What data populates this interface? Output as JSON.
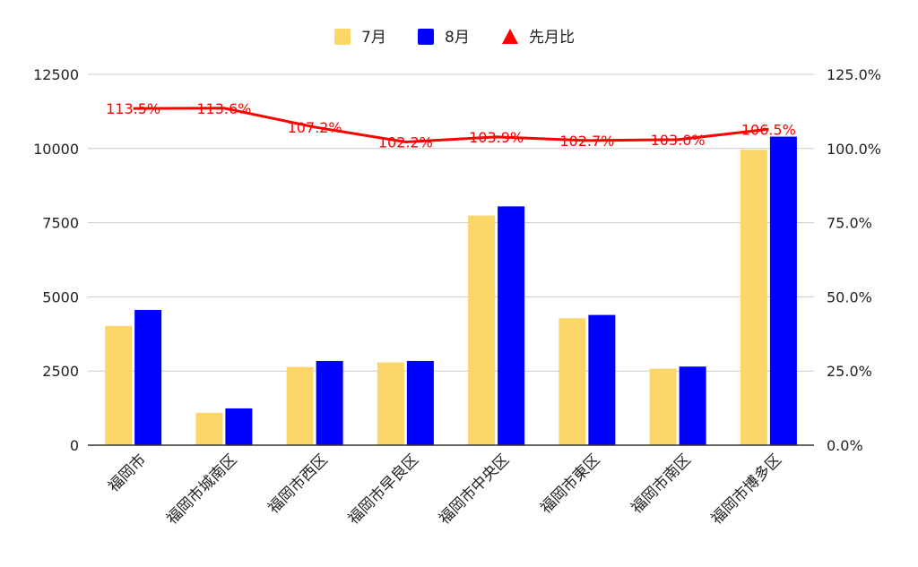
{
  "chart_data": {
    "type": "bar",
    "categories": [
      "福岡市",
      "福岡市城南区",
      "福岡市西区",
      "福岡市早良区",
      "福岡市中央区",
      "福岡市東区",
      "福岡市南区",
      "福岡市博多区"
    ],
    "series": [
      {
        "name": "7月",
        "type": "bar",
        "axis": "left",
        "color": "#fdd66a",
        "values": [
          4020,
          1090,
          2640,
          2790,
          7740,
          4280,
          2580,
          9960
        ]
      },
      {
        "name": "8月",
        "type": "bar",
        "axis": "left",
        "color": "#0000ff",
        "values": [
          4560,
          1240,
          2840,
          2840,
          8050,
          4390,
          2650,
          10400
        ]
      },
      {
        "name": "先月比",
        "type": "line",
        "axis": "right",
        "color": "#ff0000",
        "values": [
          113.5,
          113.6,
          107.2,
          102.2,
          103.9,
          102.7,
          103.0,
          106.5
        ],
        "labels": [
          "113.5%",
          "113.6%",
          "107.2%",
          "102.2%",
          "103.9%",
          "102.7%",
          "103.0%",
          "106.5%"
        ]
      }
    ],
    "ylim_left": [
      0,
      12500
    ],
    "ylim_right": [
      0,
      125
    ],
    "left_ticks": [
      "0",
      "2500",
      "5000",
      "7500",
      "10000",
      "12500"
    ],
    "right_ticks": [
      "0.0%",
      "25.0%",
      "50.0%",
      "75.0%",
      "100.0%",
      "125.0%"
    ],
    "grid": true,
    "legend_position": "top"
  }
}
